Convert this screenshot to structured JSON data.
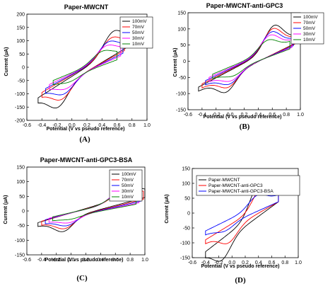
{
  "colors": {
    "100mV": "#000000",
    "70mV": "#ff0000",
    "50mV": "#0000ff",
    "30mV": "#ff00ff",
    "10mV": "#008000",
    "Paper-MWCNT": "#000000",
    "Paper-MWCNT-anti-GPC3": "#ff0000",
    "Paper-MWCNT-anti-GPC3-BSA": "#0000ff"
  },
  "panels": [
    {
      "label": "(A)",
      "title": "Paper-MWCNT",
      "xlabel": "Potential (V vs pseudo reference)",
      "ylabel": "Current (µA)"
    },
    {
      "label": "(B)",
      "title": "Paper-MWCNT-anti-GPC3",
      "xlabel": "Potential (V vs pseudo reference)",
      "ylabel": "Current (µA)"
    },
    {
      "label": "(C)",
      "title": "Paper-MWCNT-anti-GPC3-BSA",
      "xlabel": "Potential (V vs pseudo reference)",
      "ylabel": "Current (µA)"
    },
    {
      "label": "(D)",
      "title": "",
      "xlabel": "Potential (V vs pseudo reference)",
      "ylabel": "Current (µA)"
    }
  ],
  "chart_data": [
    {
      "type": "line",
      "title": "Paper-MWCNT",
      "xlabel": "Potential (V vs pseudo reference)",
      "ylabel": "Current (µA)",
      "xlim": [
        -0.6,
        1.0
      ],
      "ylim": [
        -200,
        200
      ],
      "xticks": [
        "-0.6",
        "-0.4",
        "-0.2",
        "0.0",
        "0.2",
        "0.4",
        "0.6",
        "0.8",
        "1.0"
      ],
      "yticks": [
        "-200",
        "-150",
        "-100",
        "-50",
        "0",
        "50",
        "100",
        "150",
        "200"
      ],
      "legend_position": "top-right",
      "series": [
        {
          "name": "100mV",
          "x0": -0.45,
          "x1": 0.75,
          "ya0": -115,
          "ya1": 100,
          "ep": 0.55,
          "ip": 135,
          "en": -0.18,
          "in": -150
        },
        {
          "name": "70mV",
          "x0": -0.4,
          "x1": 0.7,
          "ya0": -95,
          "ya1": 85,
          "ep": 0.52,
          "ip": 110,
          "en": -0.13,
          "in": -120
        },
        {
          "name": "50mV",
          "x0": -0.35,
          "x1": 0.68,
          "ya0": -80,
          "ya1": 75,
          "ep": 0.48,
          "ip": 95,
          "en": -0.1,
          "in": -100
        },
        {
          "name": "30mV",
          "x0": -0.3,
          "x1": 0.65,
          "ya0": -65,
          "ya1": 65,
          "ep": 0.45,
          "ip": 80,
          "en": -0.07,
          "in": -80
        },
        {
          "name": "10mV",
          "x0": -0.25,
          "x1": 0.6,
          "ya0": -50,
          "ya1": 50,
          "ep": 0.4,
          "ip": 60,
          "en": -0.03,
          "in": -55
        }
      ]
    },
    {
      "type": "line",
      "title": "Paper-MWCNT-anti-GPC3",
      "xlabel": "Potential (V vs pseudo reference)",
      "ylabel": "Current (µA)",
      "xlim": [
        -0.6,
        1.0
      ],
      "ylim": [
        -150,
        150
      ],
      "xticks": [
        "-0.6",
        "-0.4",
        "-0.2",
        "0.0",
        "0.2",
        "0.4",
        "0.6",
        "0.8",
        "1.0"
      ],
      "yticks": [
        "-150",
        "-100",
        "-50",
        "0",
        "50",
        "100",
        "150"
      ],
      "legend_position": "top-right",
      "series": [
        {
          "name": "100mV",
          "x0": -0.45,
          "x1": 0.95,
          "ya0": -80,
          "ya1": 80,
          "ep": 0.62,
          "ip": 110,
          "en": -0.05,
          "in": -95
        },
        {
          "name": "70mV",
          "x0": -0.4,
          "x1": 0.92,
          "ya0": -70,
          "ya1": 75,
          "ep": 0.6,
          "ip": 100,
          "en": -0.02,
          "in": -80
        },
        {
          "name": "50mV",
          "x0": -0.35,
          "x1": 0.9,
          "ya0": -60,
          "ya1": 70,
          "ep": 0.58,
          "ip": 90,
          "en": 0.0,
          "in": -70
        },
        {
          "name": "30mV",
          "x0": -0.3,
          "x1": 0.88,
          "ya0": -50,
          "ya1": 65,
          "ep": 0.56,
          "ip": 80,
          "en": 0.02,
          "in": -60
        },
        {
          "name": "10mV",
          "x0": -0.25,
          "x1": 0.85,
          "ya0": -40,
          "ya1": 60,
          "ep": 0.53,
          "ip": 65,
          "en": 0.05,
          "in": -45
        }
      ]
    },
    {
      "type": "line",
      "title": "Paper-MWCNT-anti-GPC3-BSA",
      "xlabel": "Potential (V vs pseudo reference)",
      "ylabel": "Current (µA)",
      "xlim": [
        -0.6,
        1.0
      ],
      "ylim": [
        -150,
        150
      ],
      "xticks": [
        "-0.6",
        "-0.4",
        "-0.2",
        "0.0",
        "0.2",
        "0.4",
        "0.6",
        "0.8",
        "1.0"
      ],
      "yticks": [
        "-150",
        "-100",
        "-50",
        "0",
        "50",
        "100",
        "150"
      ],
      "legend_position": "top-right",
      "series": [
        {
          "name": "100mV",
          "x0": -0.45,
          "x1": 1.0,
          "ya0": -40,
          "ya1": 68,
          "ep": 0.75,
          "ip": 95,
          "en": -0.1,
          "in": -70
        },
        {
          "name": "70mV",
          "x0": -0.4,
          "x1": 0.98,
          "ya0": -35,
          "ya1": 62,
          "ep": 0.72,
          "ip": 85,
          "en": -0.08,
          "in": -60
        },
        {
          "name": "50mV",
          "x0": -0.35,
          "x1": 0.95,
          "ya0": -30,
          "ya1": 56,
          "ep": 0.68,
          "ip": 75,
          "en": -0.05,
          "in": -50
        },
        {
          "name": "30mV",
          "x0": -0.3,
          "x1": 0.92,
          "ya0": -25,
          "ya1": 50,
          "ep": 0.65,
          "ip": 65,
          "en": -0.02,
          "in": -40
        },
        {
          "name": "10mV",
          "x0": -0.25,
          "x1": 0.88,
          "ya0": -20,
          "ya1": 45,
          "ep": 0.6,
          "ip": 50,
          "en": 0.0,
          "in": -28
        }
      ]
    },
    {
      "type": "line",
      "title": "",
      "xlabel": "Potential (V vs pseudo reference)",
      "ylabel": "Current (µA)",
      "xlim": [
        -0.6,
        1.0
      ],
      "ylim": [
        -150,
        150
      ],
      "xticks": [
        "-0.6",
        "-0.4",
        "-0.2",
        "0.0",
        "0.2",
        "0.4",
        "0.6",
        "0.8",
        "1.0"
      ],
      "yticks": [
        "-150",
        "-100",
        "-50",
        "0",
        "50",
        "100",
        "150"
      ],
      "legend_position": "top-left",
      "series": [
        {
          "name": "Paper-MWCNT",
          "x0": -0.4,
          "x1": 0.7,
          "ya0": -130,
          "ya1": 60,
          "ep": 0.4,
          "ip": 98,
          "en": -0.15,
          "in": -158
        },
        {
          "name": "Paper-MWCNT-anti-GPC3",
          "x0": -0.4,
          "x1": 0.7,
          "ya0": -90,
          "ya1": 60,
          "ep": 0.45,
          "ip": 90,
          "en": -0.05,
          "in": -100
        },
        {
          "name": "Paper-MWCNT-anti-GPC3-BSA",
          "x0": -0.4,
          "x1": 0.7,
          "ya0": -60,
          "ya1": 60,
          "ep": 0.38,
          "ip": 60,
          "en": -0.1,
          "in": -60
        }
      ]
    }
  ]
}
